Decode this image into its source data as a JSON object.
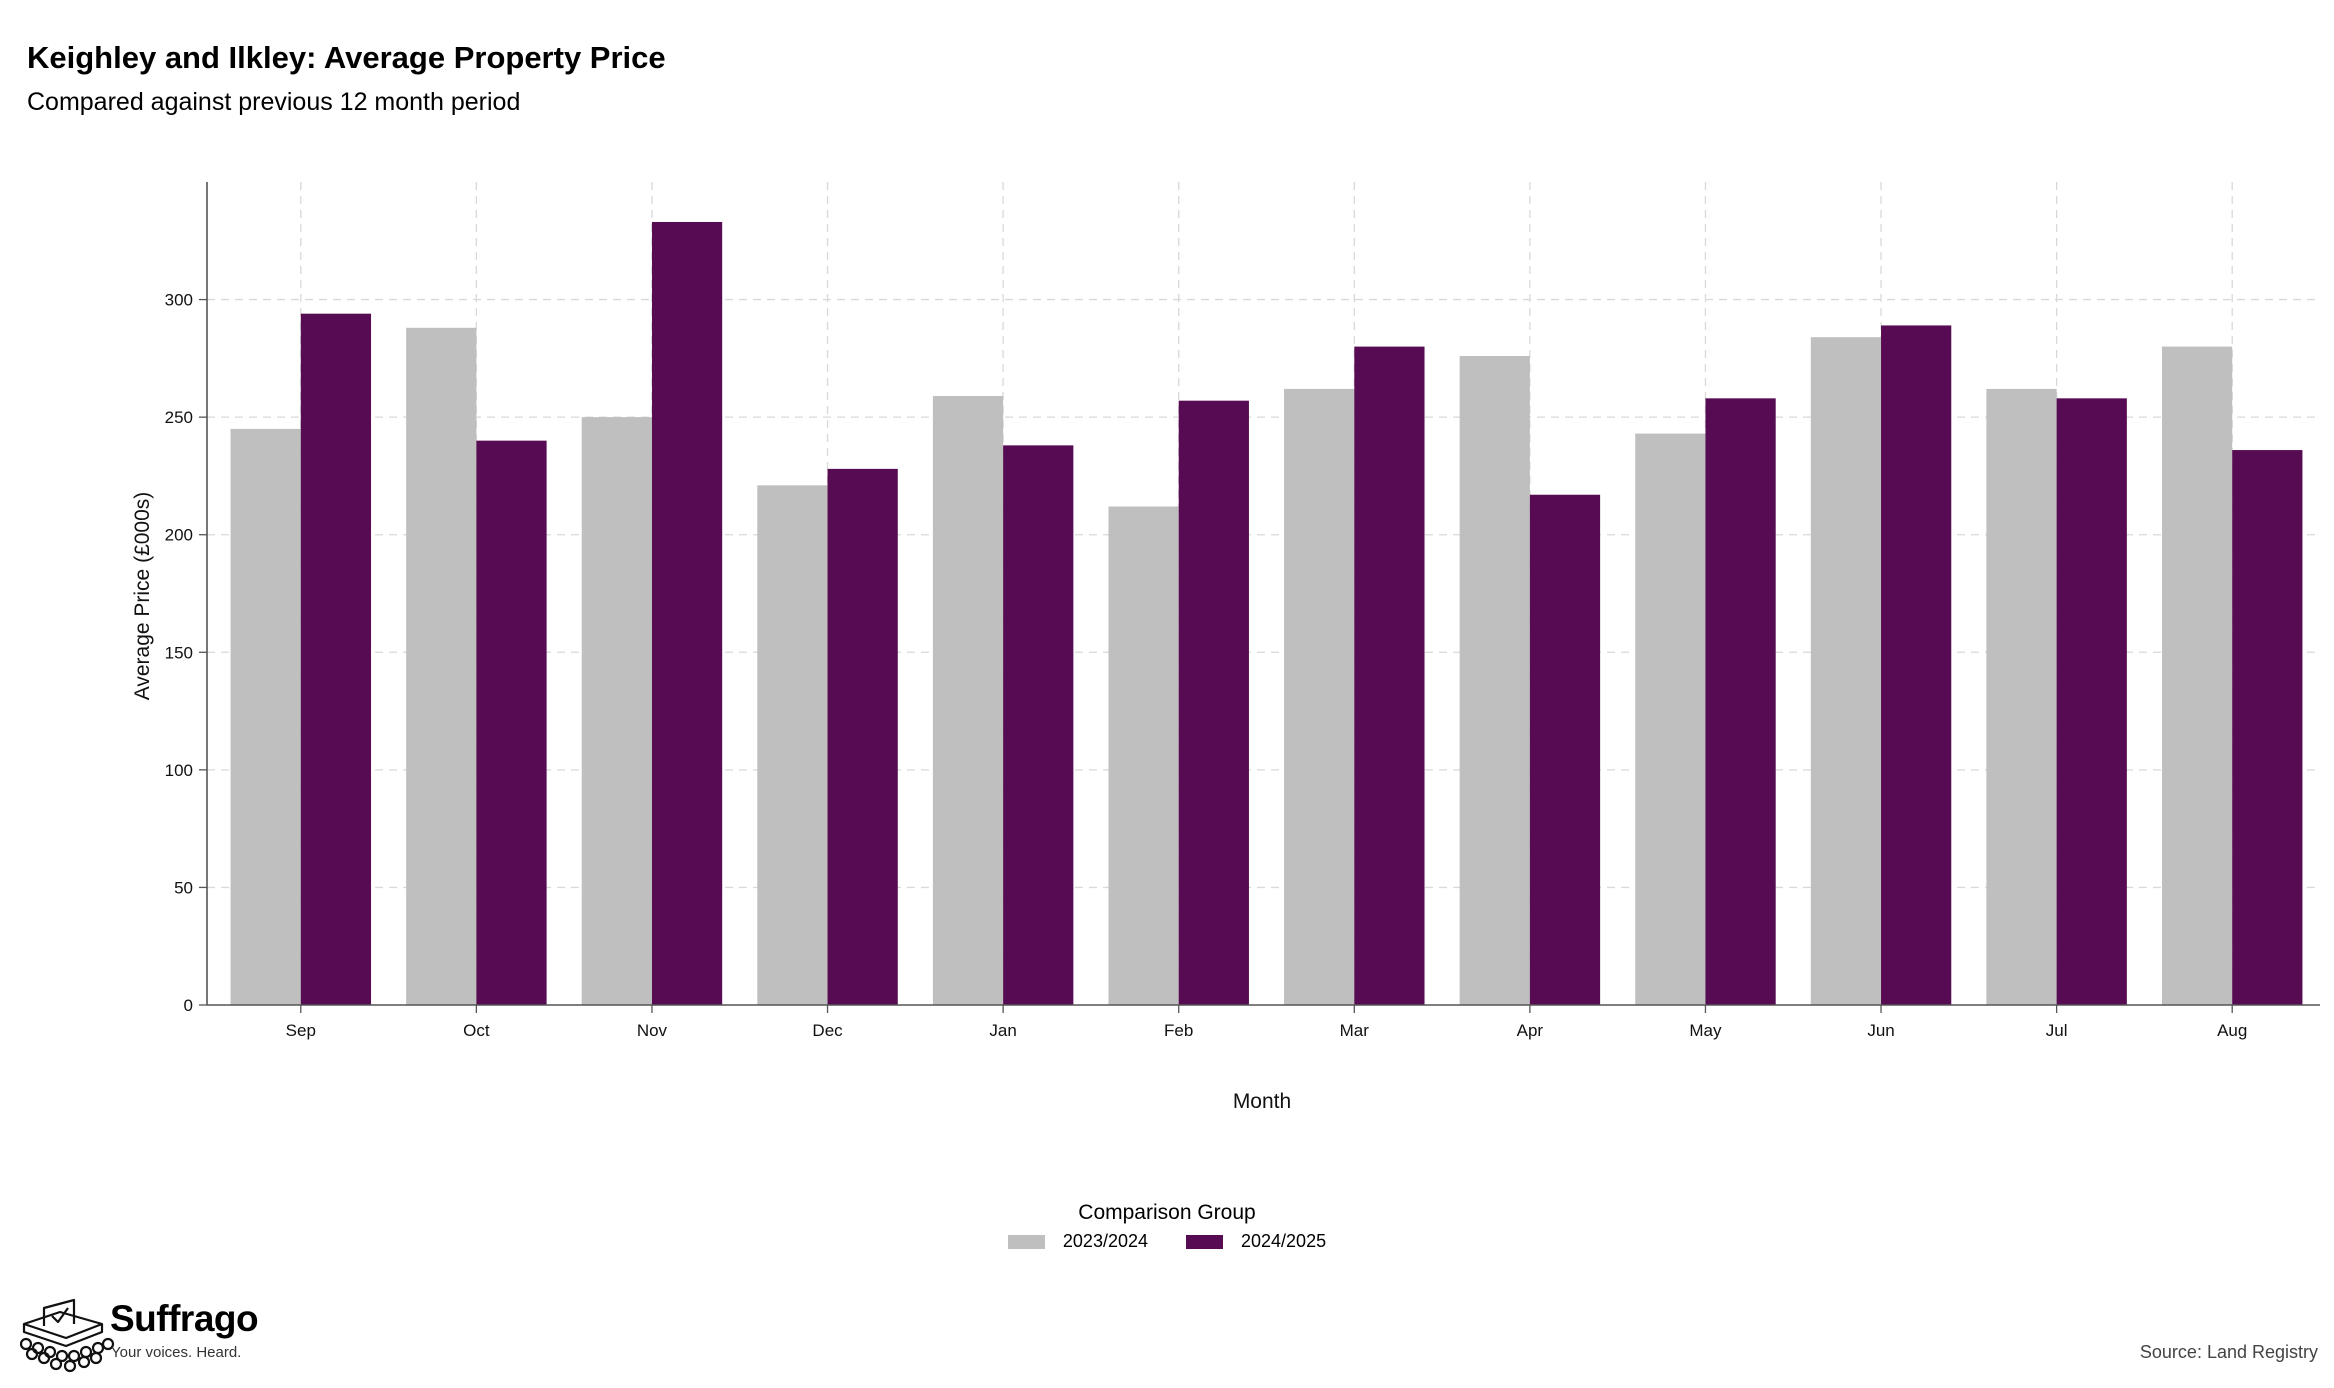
{
  "header": {
    "title": "Keighley and Ilkley: Average Property Price",
    "subtitle": "Compared against previous 12 month period"
  },
  "chart_data": {
    "type": "bar",
    "categories": [
      "Sep",
      "Oct",
      "Nov",
      "Dec",
      "Jan",
      "Feb",
      "Mar",
      "Apr",
      "May",
      "Jun",
      "Jul",
      "Aug"
    ],
    "series": [
      {
        "name": "2023/2024",
        "color": "#bfbfbf",
        "values": [
          245,
          288,
          250,
          221,
          259,
          212,
          262,
          276,
          243,
          284,
          262,
          280
        ]
      },
      {
        "name": "2024/2025",
        "color": "#560b52",
        "values": [
          294,
          240,
          333,
          228,
          238,
          257,
          280,
          217,
          258,
          289,
          258,
          236
        ]
      }
    ],
    "xlabel": "Month",
    "ylabel": "Average Price (£000s)",
    "ylim": [
      0,
      350
    ],
    "yticks": [
      0,
      50,
      100,
      150,
      200,
      250,
      300
    ],
    "grid": true,
    "legend_title": "Comparison Group",
    "legend_position": "bottom"
  },
  "branding": {
    "name": "Suffrago",
    "tagline": "Your voices. Heard.",
    "logo_icon": "ballot-box-icon"
  },
  "footer": {
    "source": "Source: Land Registry"
  }
}
